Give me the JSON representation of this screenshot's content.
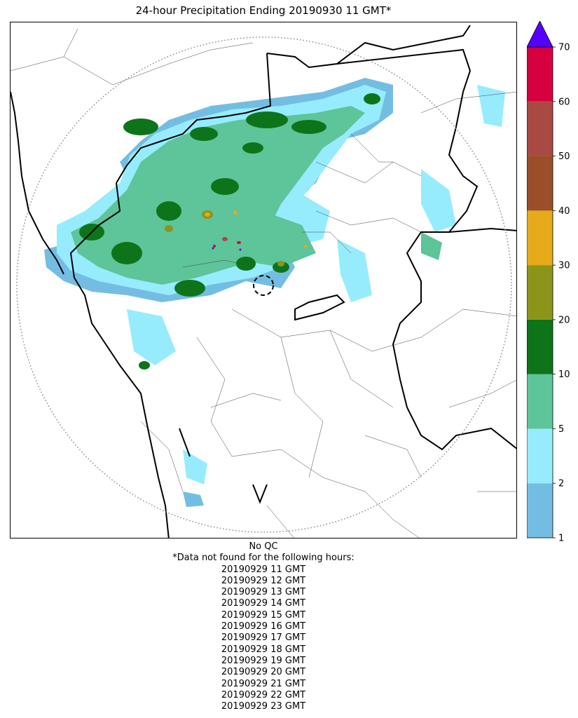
{
  "title": "24-hour Precipitation Ending 20190930 11 GMT*",
  "notes": {
    "qc_status": "No QC",
    "missing_header": "*Data not found for the following hours:",
    "missing_hours": [
      "20190929 11 GMT",
      "20190929 12 GMT",
      "20190929 13 GMT",
      "20190929 14 GMT",
      "20190929 15 GMT",
      "20190929 16 GMT",
      "20190929 17 GMT",
      "20190929 18 GMT",
      "20190929 19 GMT",
      "20190929 20 GMT",
      "20190929 21 GMT",
      "20190929 22 GMT",
      "20190929 23 GMT"
    ]
  },
  "colorbar": {
    "ticks": [
      "1",
      "2",
      "5",
      "10",
      "20",
      "30",
      "40",
      "50",
      "60",
      "70"
    ],
    "bins": [
      {
        "from": "1",
        "to": "2",
        "color": "#74bde2"
      },
      {
        "from": "2",
        "to": "5",
        "color": "#96ecfd"
      },
      {
        "from": "5",
        "to": "10",
        "color": "#5ec499"
      },
      {
        "from": "10",
        "to": "20",
        "color": "#0e741a"
      },
      {
        "from": "20",
        "to": "30",
        "color": "#8c9519"
      },
      {
        "from": "30",
        "to": "40",
        "color": "#e6aa1a"
      },
      {
        "from": "40",
        "to": "50",
        "color": "#9a4e29"
      },
      {
        "from": "50",
        "to": "60",
        "color": "#a84a42"
      },
      {
        "from": "60",
        "to": "70",
        "color": "#d6003f"
      }
    ],
    "extend_max_color": "#5500ff"
  },
  "map": {
    "radar_range_ring": "dotted",
    "radar_site_marker": "dashed-circle",
    "background": "#ffffff"
  }
}
